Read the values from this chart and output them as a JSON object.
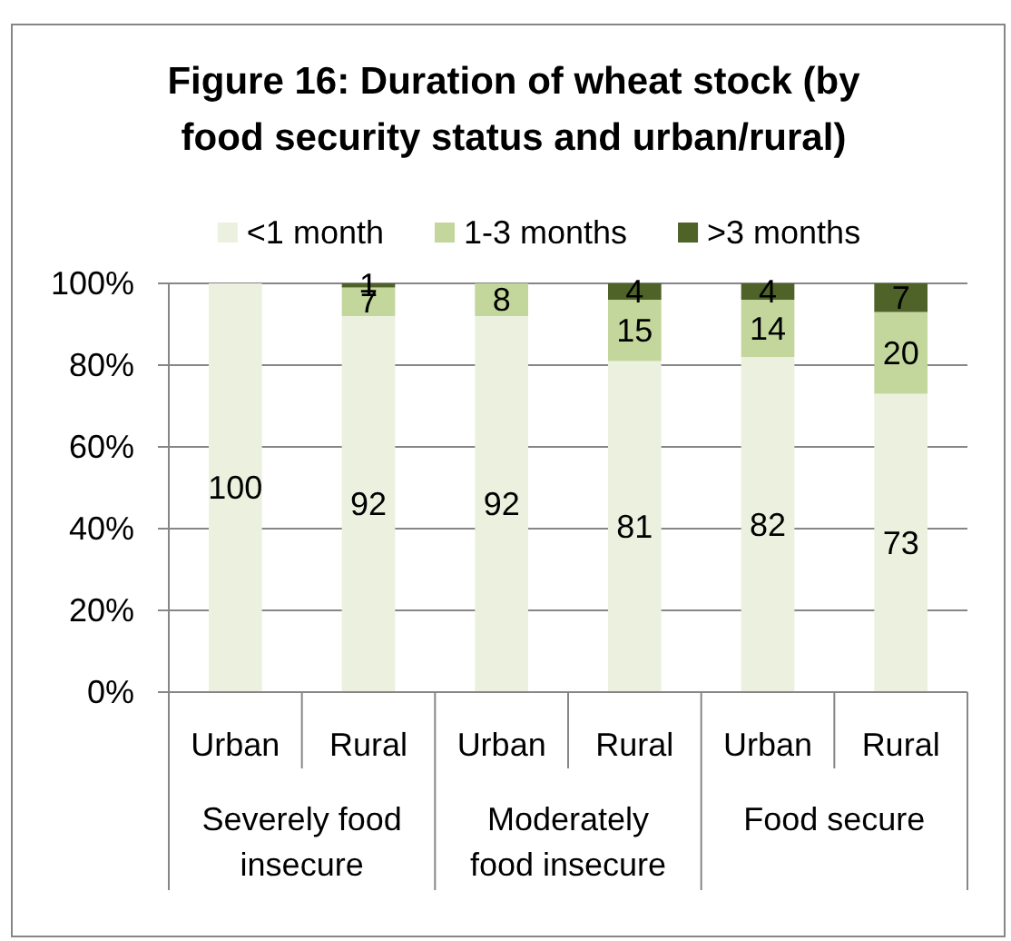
{
  "chart_data": {
    "type": "bar",
    "title": "Figure 16: Duration of wheat stock (by food security status and urban/rural)",
    "categories": [
      "Urban",
      "Rural",
      "Urban",
      "Rural",
      "Urban",
      "Rural"
    ],
    "series": [
      {
        "name": "<1 month",
        "color": "#ebf1de",
        "values": [
          100,
          92,
          92,
          81,
          82,
          73
        ]
      },
      {
        "name": "1-3 months",
        "color": "#c3d69b",
        "values": [
          null,
          7,
          8,
          15,
          14,
          20
        ]
      },
      {
        "name": ">3 months",
        "color": "#4f6228",
        "values": [
          null,
          1,
          null,
          4,
          4,
          7
        ]
      }
    ],
    "stacked": true,
    "ylim": [
      0,
      100
    ],
    "yticks": [
      {
        "value": 0,
        "label": "0%"
      },
      {
        "value": 20,
        "label": "20%"
      },
      {
        "value": 40,
        "label": "40%"
      },
      {
        "value": 60,
        "label": "60%"
      },
      {
        "value": 80,
        "label": "80%"
      },
      {
        "value": 100,
        "label": "100%"
      }
    ],
    "grid": "y",
    "legend": "top",
    "data_labels": true,
    "annotations": [
      "Severely food insecure",
      "Moderately food insecure",
      "Food secure"
    ]
  }
}
